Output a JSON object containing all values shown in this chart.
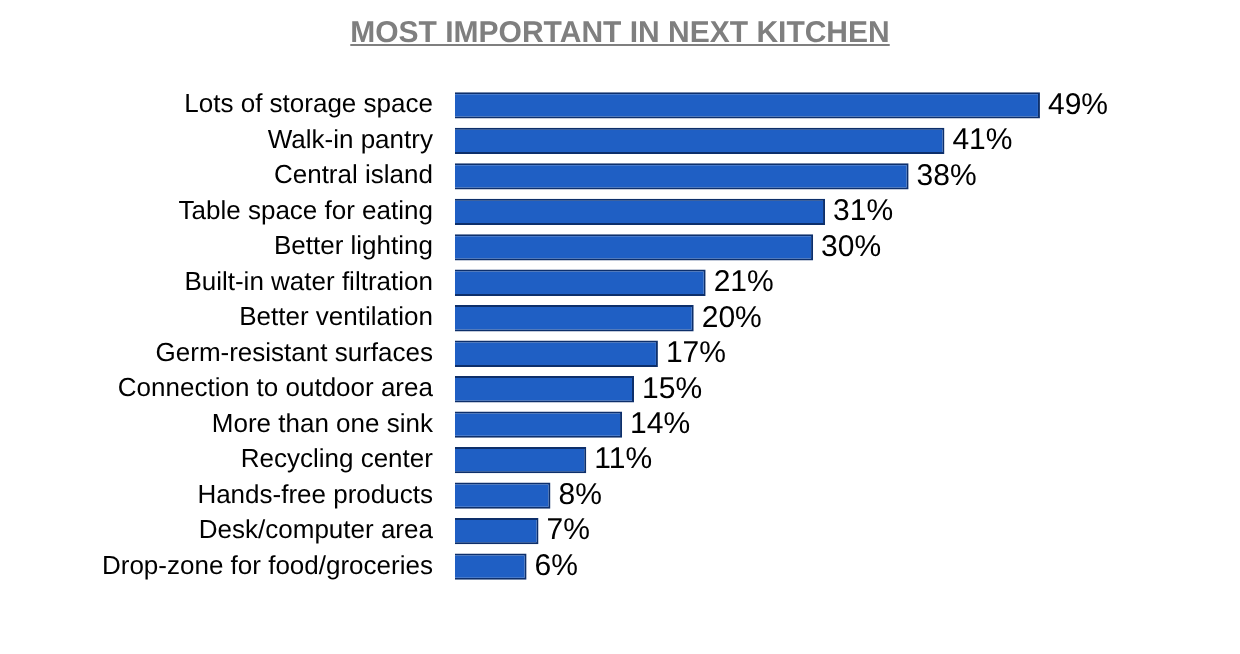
{
  "chart_data": {
    "type": "bar",
    "orientation": "horizontal",
    "title": "MOST IMPORTANT IN NEXT KITCHEN",
    "categories": [
      "Lots of storage space",
      "Walk-in pantry",
      "Central island",
      "Table space for eating",
      "Better lighting",
      "Built-in water filtration",
      "Better ventilation",
      "Germ-resistant surfaces",
      "Connection to outdoor area",
      "More than one sink",
      "Recycling center",
      "Hands-free products",
      "Desk/computer area",
      "Drop-zone for food/groceries"
    ],
    "values": [
      49,
      41,
      38,
      31,
      30,
      21,
      20,
      17,
      15,
      14,
      11,
      8,
      7,
      6
    ],
    "value_labels": [
      "49%",
      "41%",
      "38%",
      "31%",
      "30%",
      "21%",
      "20%",
      "17%",
      "15%",
      "14%",
      "11%",
      "8%",
      "7%",
      "6%"
    ],
    "color": "#1f5fc4"
  }
}
